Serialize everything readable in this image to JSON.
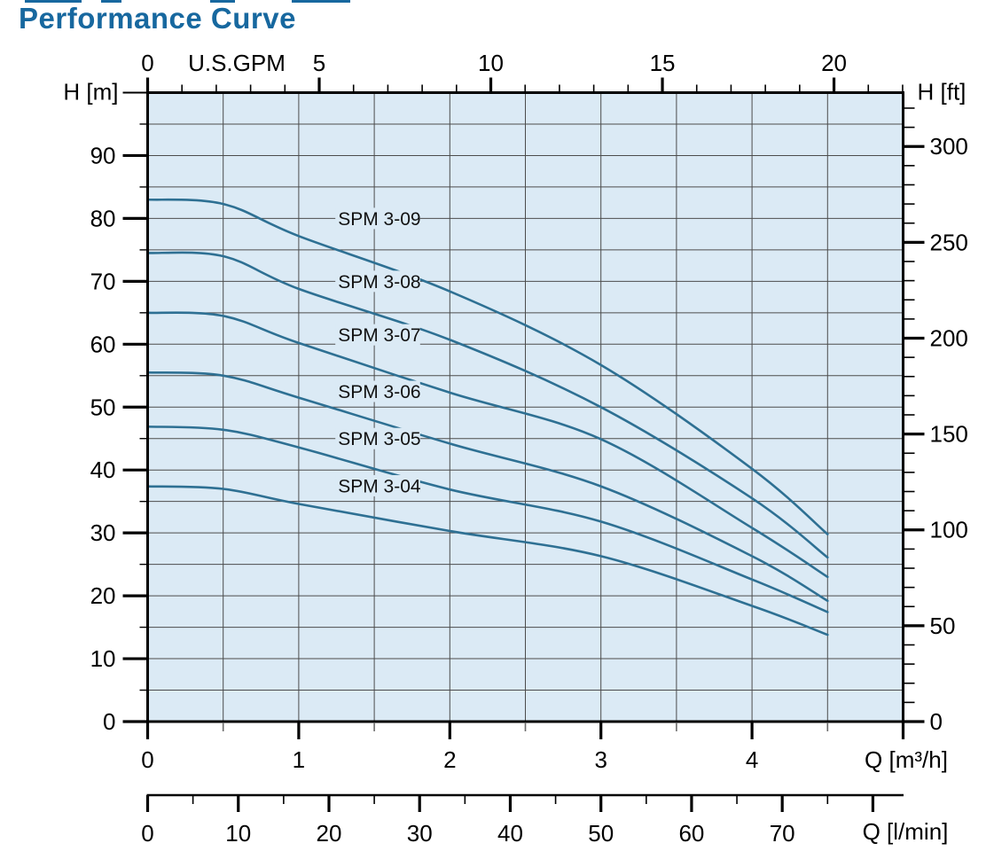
{
  "page": {
    "title": "Performance Curve"
  },
  "chart_data": {
    "type": "line",
    "title": "Performance Curve",
    "x": [
      0,
      0.5,
      1,
      2,
      3,
      4,
      4.5
    ],
    "x_unit": "m³/h",
    "y_unit": "m",
    "series": [
      {
        "name": "SPM 3-09",
        "values": [
          83.0,
          82.3,
          77.2,
          68.4,
          56.7,
          40.2,
          29.8
        ],
        "label_q": 1.26,
        "label_h": 80.0
      },
      {
        "name": "SPM 3-08",
        "values": [
          74.5,
          74.0,
          68.8,
          60.7,
          50.0,
          35.5,
          26.1
        ],
        "label_q": 1.26,
        "label_h": 70.0
      },
      {
        "name": "SPM 3-07",
        "values": [
          65.0,
          64.5,
          60.2,
          52.3,
          44.9,
          30.8,
          23.0
        ],
        "label_q": 1.26,
        "label_h": 61.5
      },
      {
        "name": "SPM 3-06",
        "values": [
          55.5,
          55.0,
          51.5,
          44.2,
          37.4,
          26.3,
          19.2
        ],
        "label_q": 1.26,
        "label_h": 52.5
      },
      {
        "name": "SPM 3-05",
        "values": [
          46.9,
          46.4,
          43.6,
          36.9,
          31.8,
          22.6,
          17.4
        ],
        "label_q": 1.26,
        "label_h": 45.0
      },
      {
        "name": "SPM 3-04",
        "values": [
          37.4,
          37.0,
          34.6,
          30.3,
          26.3,
          18.4,
          13.8
        ],
        "label_q": 1.26,
        "label_h": 37.5
      }
    ],
    "axes": {
      "left": {
        "label": "H [m]",
        "min": 0,
        "max": 100,
        "major_step": 10,
        "minor_step": 5,
        "tick_labels": [
          0,
          10,
          20,
          30,
          40,
          50,
          60,
          70,
          80,
          90
        ]
      },
      "right": {
        "label": "H [ft]",
        "min": 0,
        "max": 328,
        "major_step": 50,
        "minor_step": 10,
        "tick_labels": [
          0,
          50,
          100,
          150,
          200,
          250,
          300
        ]
      },
      "top": {
        "label": "U.S.GPM",
        "min": 0,
        "max": 22,
        "major_step": 5,
        "minor_step": 1,
        "tick_labels": [
          0,
          5,
          10,
          15,
          20
        ]
      },
      "bottom_m3h": {
        "label": "Q [m³/h]",
        "min": 0,
        "max": 5,
        "major_step": 1,
        "minor_step": 0.5,
        "tick_labels": [
          0,
          1,
          2,
          3,
          4
        ]
      },
      "bottom_lmin": {
        "label": "Q [l/min]",
        "min": 0,
        "max": 83.3,
        "major_step": 10,
        "minor_step": 5,
        "tick_labels": [
          0,
          10,
          20,
          30,
          40,
          50,
          60,
          70
        ]
      }
    },
    "grid": {
      "horizontal_step_m": 5,
      "vertical_step_m3h": 0.5
    },
    "legend_position": "on-curve-labels",
    "colors": {
      "curve": "#2e7093",
      "plot_bg": "#dbeaf5",
      "grid": "#4c4c4c",
      "axis": "#000000",
      "title": "#17689f",
      "minor_tick_gray": "#6b6b6b"
    },
    "artifacts_top_edge": [
      {
        "x": 28,
        "w": 64
      },
      {
        "x": 114,
        "w": 23
      },
      {
        "x": 237,
        "w": 28
      },
      {
        "x": 329,
        "w": 66
      }
    ]
  }
}
